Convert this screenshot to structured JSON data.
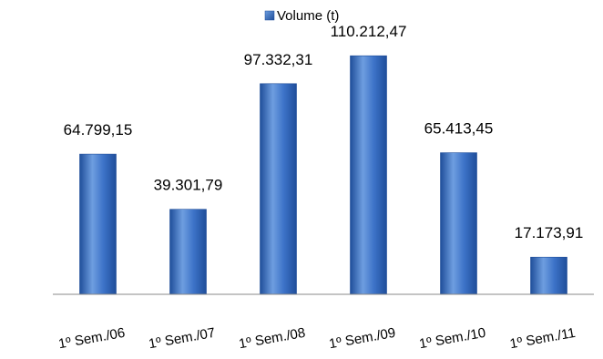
{
  "chart_data": {
    "type": "bar",
    "title": "",
    "xlabel": "",
    "ylabel": "",
    "categories": [
      "1º Sem./06",
      "1º Sem./07",
      "1º Sem./08",
      "1º Sem./09",
      "1º Sem./10",
      "1º Sem./11"
    ],
    "series": [
      {
        "name": "Volume (t)",
        "values": [
          64799.15,
          39301.79,
          97332.31,
          110212.47,
          65413.45,
          17173.91
        ]
      }
    ],
    "data_labels": [
      "64.799,15",
      "39.301,79",
      "97.332,31",
      "110.212,47",
      "65.413,45",
      "17.173,91"
    ],
    "ylim": [
      0,
      120000
    ],
    "grid": false,
    "legend_position": "top",
    "colors": {
      "bar_light": "#6E9EE0",
      "bar_mid": "#3D73C8",
      "bar_dark": "#1F4E9A",
      "axis": "#888888"
    }
  }
}
